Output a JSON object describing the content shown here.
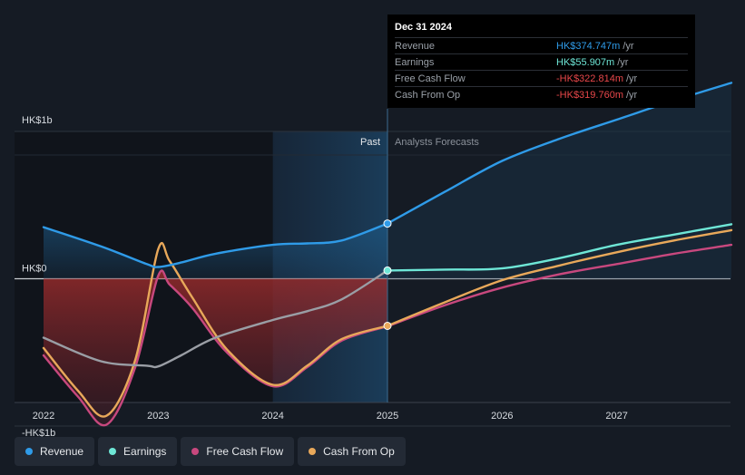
{
  "chart_data": {
    "type": "line",
    "currency": "HK$",
    "y_ticks": [
      {
        "value": 1000,
        "label": "HK$1b"
      },
      {
        "value": 0,
        "label": "HK$0"
      },
      {
        "value": -1000,
        "label": "-HK$1b"
      }
    ],
    "x_ticks": [
      {
        "value": 2022,
        "label": "2022"
      },
      {
        "value": 2023,
        "label": "2023"
      },
      {
        "value": 2024,
        "label": "2024"
      },
      {
        "value": 2025,
        "label": "2025"
      },
      {
        "value": 2026,
        "label": "2026"
      },
      {
        "value": 2027,
        "label": "2027"
      }
    ],
    "xlim": [
      2021.75,
      2028.0
    ],
    "ylim": [
      -1100,
      1300
    ],
    "divider_x": 2025.0,
    "highlight_start_x": 2024.0,
    "past_label": "Past",
    "forecast_label": "Analysts Forecasts",
    "series": [
      {
        "name": "Revenue",
        "color": "#2f9be8",
        "area": true,
        "points": [
          [
            2022.0,
            350
          ],
          [
            2022.5,
            220
          ],
          [
            2022.9,
            100
          ],
          [
            2023.0,
            80
          ],
          [
            2023.2,
            110
          ],
          [
            2023.5,
            170
          ],
          [
            2024.0,
            230
          ],
          [
            2024.3,
            240
          ],
          [
            2024.6,
            260
          ],
          [
            2025.0,
            374.7
          ],
          [
            2025.5,
            590
          ],
          [
            2026.0,
            800
          ],
          [
            2026.5,
            950
          ],
          [
            2027.0,
            1080
          ],
          [
            2027.5,
            1210
          ],
          [
            2028.0,
            1330
          ]
        ]
      },
      {
        "name": "Earnings",
        "color": "#6ee6d6",
        "area": false,
        "points": [
          [
            2022.0,
            -400
          ],
          [
            2022.5,
            -560
          ],
          [
            2022.9,
            -590
          ],
          [
            2023.0,
            -595
          ],
          [
            2023.2,
            -520
          ],
          [
            2023.5,
            -400
          ],
          [
            2024.0,
            -280
          ],
          [
            2024.3,
            -220
          ],
          [
            2024.6,
            -140
          ],
          [
            2025.0,
            55.9
          ],
          [
            2025.5,
            62
          ],
          [
            2026.0,
            70
          ],
          [
            2026.5,
            140
          ],
          [
            2027.0,
            230
          ],
          [
            2027.5,
            300
          ],
          [
            2028.0,
            370
          ]
        ]
      },
      {
        "name": "Free Cash Flow",
        "color": "#c8487e",
        "area": true,
        "points": [
          [
            2022.0,
            -520
          ],
          [
            2022.3,
            -800
          ],
          [
            2022.55,
            -990
          ],
          [
            2022.8,
            -600
          ],
          [
            2023.0,
            20
          ],
          [
            2023.1,
            -40
          ],
          [
            2023.3,
            -200
          ],
          [
            2023.6,
            -500
          ],
          [
            2024.0,
            -730
          ],
          [
            2024.3,
            -600
          ],
          [
            2024.6,
            -420
          ],
          [
            2025.0,
            -322.8
          ],
          [
            2025.5,
            -180
          ],
          [
            2026.0,
            -60
          ],
          [
            2026.5,
            30
          ],
          [
            2027.0,
            100
          ],
          [
            2027.5,
            170
          ],
          [
            2028.0,
            230
          ]
        ]
      },
      {
        "name": "Cash From Op",
        "color": "#e8a85a",
        "area": false,
        "points": [
          [
            2022.0,
            -470
          ],
          [
            2022.3,
            -760
          ],
          [
            2022.55,
            -930
          ],
          [
            2022.8,
            -550
          ],
          [
            2023.0,
            200
          ],
          [
            2023.1,
            120
          ],
          [
            2023.3,
            -130
          ],
          [
            2023.6,
            -480
          ],
          [
            2024.0,
            -720
          ],
          [
            2024.3,
            -590
          ],
          [
            2024.6,
            -410
          ],
          [
            2025.0,
            -319.8
          ],
          [
            2025.5,
            -160
          ],
          [
            2026.0,
            -10
          ],
          [
            2026.5,
            90
          ],
          [
            2027.0,
            180
          ],
          [
            2027.5,
            260
          ],
          [
            2028.0,
            330
          ]
        ]
      }
    ],
    "marker_x": 2025.0
  },
  "tooltip": {
    "date": "Dec 31 2024",
    "rows": [
      {
        "label": "Revenue",
        "value": "HK$374.747m",
        "unit": "/yr",
        "color": "#2f9be8"
      },
      {
        "label": "Earnings",
        "value": "HK$55.907m",
        "unit": "/yr",
        "color": "#6ee6d6"
      },
      {
        "label": "Free Cash Flow",
        "value": "-HK$322.814m",
        "unit": "/yr",
        "color": "#e8474a"
      },
      {
        "label": "Cash From Op",
        "value": "-HK$319.760m",
        "unit": "/yr",
        "color": "#e8474a"
      }
    ]
  },
  "legend": [
    {
      "label": "Revenue",
      "color": "#2f9be8"
    },
    {
      "label": "Earnings",
      "color": "#6ee6d6"
    },
    {
      "label": "Free Cash Flow",
      "color": "#c8487e"
    },
    {
      "label": "Cash From Op",
      "color": "#e8a85a"
    }
  ]
}
